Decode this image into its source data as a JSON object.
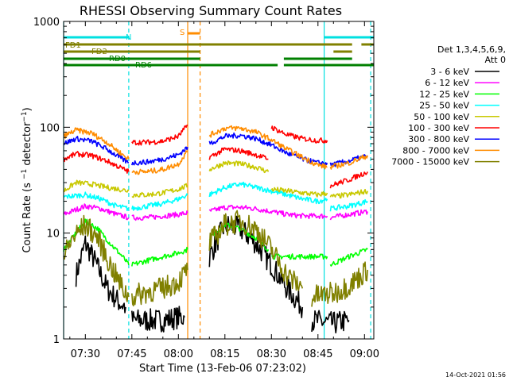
{
  "title": "RHESSI Observing Summary Count Rates",
  "footer_date": "14-Oct-2021 01:56",
  "chart_data": {
    "type": "line",
    "title": "RHESSI Observing Summary Count Rates",
    "xlabel": "Start Time (13-Feb-06 07:23:02)",
    "ylabel": "Count Rate (s^-1 detector^-1)",
    "xlim": [
      "07:23",
      "09:03"
    ],
    "ylim": [
      1,
      1000
    ],
    "yscale": "log",
    "x_ticks": [
      "07:30",
      "07:45",
      "08:00",
      "08:15",
      "08:30",
      "08:45",
      "09:00"
    ],
    "y_ticks": [
      "1",
      "10",
      "100",
      "1000"
    ],
    "legend_header": [
      "Det 1,3,4,5,6,9,",
      "Att 0"
    ],
    "legend_placement": "right",
    "series": [
      {
        "name": "3 - 6 keV",
        "color": "#000000",
        "segments": [
          {
            "x": [
              "07:27",
              "07:30",
              "07:33",
              "07:37",
              "07:41",
              "07:43"
            ],
            "y": [
              4.0,
              8.0,
              5.5,
              3.0,
              2.2,
              2.0
            ]
          },
          {
            "x": [
              "07:45",
              "07:50",
              "07:55",
              "08:00",
              "08:02"
            ],
            "y": [
              1.5,
              1.5,
              1.5,
              1.6,
              1.6
            ]
          },
          {
            "x": [
              "08:10",
              "08:15",
              "08:20",
              "08:25",
              "08:30",
              "08:35",
              "08:40"
            ],
            "y": [
              6.0,
              12.0,
              11.0,
              8.0,
              5.0,
              3.0,
              2.0
            ]
          },
          {
            "x": [
              "08:43",
              "08:50",
              "08:55"
            ],
            "y": [
              1.5,
              1.4,
              1.5
            ]
          }
        ]
      },
      {
        "name": "6 - 12 keV",
        "color": "#ff00ff",
        "segments": [
          {
            "x": [
              "07:23",
              "07:30",
              "07:35",
              "07:40",
              "07:44"
            ],
            "y": [
              15,
              18,
              17,
              15,
              14
            ]
          },
          {
            "x": [
              "07:45",
              "07:50",
              "07:55",
              "08:00",
              "08:03"
            ],
            "y": [
              14,
              14,
              14.5,
              15,
              15.5
            ]
          },
          {
            "x": [
              "08:10",
              "08:15",
              "08:20",
              "08:25",
              "08:30",
              "08:35",
              "08:40",
              "08:45",
              "08:48"
            ],
            "y": [
              16,
              17.5,
              17.5,
              17,
              16,
              15,
              14.5,
              14.5,
              14.5
            ]
          },
          {
            "x": [
              "08:49",
              "08:55",
              "09:01"
            ],
            "y": [
              14,
              15,
              16
            ]
          }
        ]
      },
      {
        "name": "12 - 25 keV",
        "color": "#00ff00",
        "segments": [
          {
            "x": [
              "07:23",
              "07:27",
              "07:30",
              "07:34",
              "07:38",
              "07:42",
              "07:44"
            ],
            "y": [
              7,
              10,
              13,
              11,
              8,
              6,
              5
            ]
          },
          {
            "x": [
              "07:45",
              "07:50",
              "07:55",
              "08:00",
              "08:03"
            ],
            "y": [
              5,
              5.5,
              6,
              6.5,
              7
            ]
          },
          {
            "x": [
              "08:10",
              "08:15",
              "08:20",
              "08:25",
              "08:29"
            ],
            "y": [
              9,
              12,
              11,
              9,
              7
            ]
          },
          {
            "x": [
              "08:30",
              "08:35",
              "08:40",
              "08:45",
              "08:48"
            ],
            "y": [
              6,
              6,
              6,
              6,
              6
            ]
          },
          {
            "x": [
              "08:49",
              "08:55",
              "09:01"
            ],
            "y": [
              5,
              6,
              7
            ]
          }
        ]
      },
      {
        "name": "25 - 50 keV",
        "color": "#00ffff",
        "segments": [
          {
            "x": [
              "07:23",
              "07:30",
              "07:35",
              "07:40",
              "07:44"
            ],
            "y": [
              22,
              23,
              21,
              18,
              17
            ]
          },
          {
            "x": [
              "07:45",
              "07:50",
              "07:55",
              "08:00",
              "08:03"
            ],
            "y": [
              17,
              18,
              19,
              21,
              23
            ]
          },
          {
            "x": [
              "08:10",
              "08:15",
              "08:20",
              "08:25",
              "08:30",
              "08:35",
              "08:40",
              "08:45",
              "08:48"
            ],
            "y": [
              23,
              27,
              29,
              27,
              25,
              23,
              21,
              20,
              21
            ]
          },
          {
            "x": [
              "08:49",
              "08:55",
              "09:01"
            ],
            "y": [
              17,
              18,
              20
            ]
          }
        ]
      },
      {
        "name": "50 - 100 keV",
        "color": "#c8c800",
        "segments": [
          {
            "x": [
              "07:23",
              "07:27",
              "07:32",
              "07:37",
              "07:41",
              "07:44"
            ],
            "y": [
              25,
              30,
              29,
              27,
              26,
              25
            ]
          },
          {
            "x": [
              "07:45",
              "07:50",
              "07:55",
              "08:00",
              "08:03"
            ],
            "y": [
              23,
              23,
              24,
              26,
              28
            ]
          },
          {
            "x": [
              "08:10",
              "08:15",
              "08:20",
              "08:25",
              "08:29"
            ],
            "y": [
              40,
              46,
              45,
              42,
              38
            ]
          },
          {
            "x": [
              "08:30",
              "08:35",
              "08:40",
              "08:45",
              "08:48"
            ],
            "y": [
              26,
              25,
              24,
              23,
              24
            ]
          },
          {
            "x": [
              "08:49",
              "08:55",
              "09:01"
            ],
            "y": [
              22,
              23,
              25
            ]
          }
        ]
      },
      {
        "name": "100 - 300 keV",
        "color": "#ff0000",
        "segments": [
          {
            "x": [
              "07:23",
              "07:27",
              "07:32",
              "07:37",
              "07:41",
              "07:44"
            ],
            "y": [
              50,
              56,
              54,
              48,
              42,
              38
            ]
          },
          {
            "x": [
              "07:45",
              "07:50",
              "07:55",
              "08:00",
              "08:03"
            ],
            "y": [
              72,
              72,
              74,
              82,
              105
            ]
          },
          {
            "x": [
              "08:10",
              "08:15",
              "08:20",
              "08:25",
              "08:29"
            ],
            "y": [
              52,
              62,
              60,
              55,
              50
            ]
          },
          {
            "x": [
              "08:30",
              "08:35",
              "08:40",
              "08:45",
              "08:48"
            ],
            "y": [
              100,
              85,
              78,
              75,
              75
            ]
          },
          {
            "x": [
              "08:49",
              "08:55",
              "09:01"
            ],
            "y": [
              28,
              32,
              38
            ]
          }
        ]
      },
      {
        "name": "300 - 800 keV",
        "color": "#0000ff",
        "segments": [
          {
            "x": [
              "07:23",
              "07:27",
              "07:32",
              "07:37",
              "07:41",
              "07:44"
            ],
            "y": [
              70,
              78,
              74,
              62,
              52,
              46
            ]
          },
          {
            "x": [
              "07:45",
              "07:50",
              "07:55",
              "08:00",
              "08:03"
            ],
            "y": [
              46,
              47,
              50,
              55,
              65
            ]
          },
          {
            "x": [
              "08:10",
              "08:15",
              "08:20",
              "08:25",
              "08:30",
              "08:35",
              "08:40",
              "08:45",
              "08:48"
            ],
            "y": [
              70,
              82,
              84,
              78,
              68,
              57,
              50,
              46,
              46
            ]
          },
          {
            "x": [
              "08:49",
              "08:55",
              "09:01"
            ],
            "y": [
              44,
              48,
              54
            ]
          }
        ]
      },
      {
        "name": "800 - 7000 keV",
        "color": "#ff8c00",
        "segments": [
          {
            "x": [
              "07:23",
              "07:27",
              "07:32",
              "07:37",
              "07:41",
              "07:44"
            ],
            "y": [
              82,
              94,
              88,
              72,
              58,
              50
            ]
          },
          {
            "x": [
              "07:45",
              "07:50",
              "07:55",
              "08:00",
              "08:03"
            ],
            "y": [
              38,
              38,
              40,
              45,
              60
            ]
          },
          {
            "x": [
              "08:10",
              "08:15",
              "08:20",
              "08:25",
              "08:30",
              "08:35",
              "08:40",
              "08:45",
              "08:48"
            ],
            "y": [
              84,
              98,
              98,
              90,
              76,
              62,
              52,
              44,
              42
            ]
          },
          {
            "x": [
              "08:49",
              "08:55",
              "09:01"
            ],
            "y": [
              42,
              46,
              54
            ]
          }
        ]
      },
      {
        "name": "7000 - 15000 keV",
        "color": "#808000",
        "segments": [
          {
            "x": [
              "07:23",
              "07:26",
              "07:30",
              "07:34",
              "07:38",
              "07:42",
              "07:44"
            ],
            "y": [
              6,
              9,
              12,
              9,
              5,
              3,
              2.5
            ]
          },
          {
            "x": [
              "07:45",
              "07:50",
              "07:55",
              "08:00",
              "08:03"
            ],
            "y": [
              2.5,
              2.8,
              3.0,
              3.5,
              4.5
            ]
          },
          {
            "x": [
              "08:10",
              "08:15",
              "08:20",
              "08:25",
              "08:30",
              "08:35",
              "08:40"
            ],
            "y": [
              8,
              12,
              13,
              11,
              7,
              4,
              3
            ]
          },
          {
            "x": [
              "08:43",
              "08:50",
              "08:55",
              "09:01"
            ],
            "y": [
              2.5,
              2.7,
              3.2,
              4.5
            ]
          }
        ]
      }
    ],
    "flag_rows": [
      {
        "label": "N",
        "color": "#00e0e0",
        "segments": [
          [
            "07:23",
            "07:44"
          ],
          [
            "08:47",
            "09:03"
          ]
        ]
      },
      {
        "label": "S",
        "color": "#ff8c00",
        "segments": [
          [
            "08:03",
            "08:07"
          ]
        ]
      },
      {
        "label": "FD1",
        "color": "#808000",
        "segments": [
          [
            "07:23",
            "08:56"
          ],
          [
            "08:59",
            "09:03"
          ]
        ]
      },
      {
        "label": "FD2",
        "color": "#808000",
        "segments": [
          [
            "07:23",
            "08:07"
          ],
          [
            "08:50",
            "08:56"
          ]
        ]
      },
      {
        "label": "RD0",
        "color": "#008000",
        "segments": [
          [
            "07:23",
            "08:07"
          ],
          [
            "08:34",
            "08:56"
          ]
        ]
      },
      {
        "label": "RD6",
        "color": "#008000",
        "segments": [
          [
            "07:23",
            "08:07"
          ],
          [
            "08:07",
            "08:32"
          ],
          [
            "08:34",
            "09:03"
          ]
        ]
      }
    ],
    "markers": [
      {
        "time": "07:23",
        "color": "#00e0e0",
        "style": "solid"
      },
      {
        "time": "07:44",
        "color": "#00e0e0",
        "style": "dashed"
      },
      {
        "time": "08:03",
        "color": "#ff8c00",
        "style": "solid"
      },
      {
        "time": "08:07",
        "color": "#ff8c00",
        "style": "dashed"
      },
      {
        "time": "08:47",
        "color": "#00e0e0",
        "style": "solid"
      },
      {
        "time": "09:02",
        "color": "#00e0e0",
        "style": "dashed"
      }
    ]
  }
}
